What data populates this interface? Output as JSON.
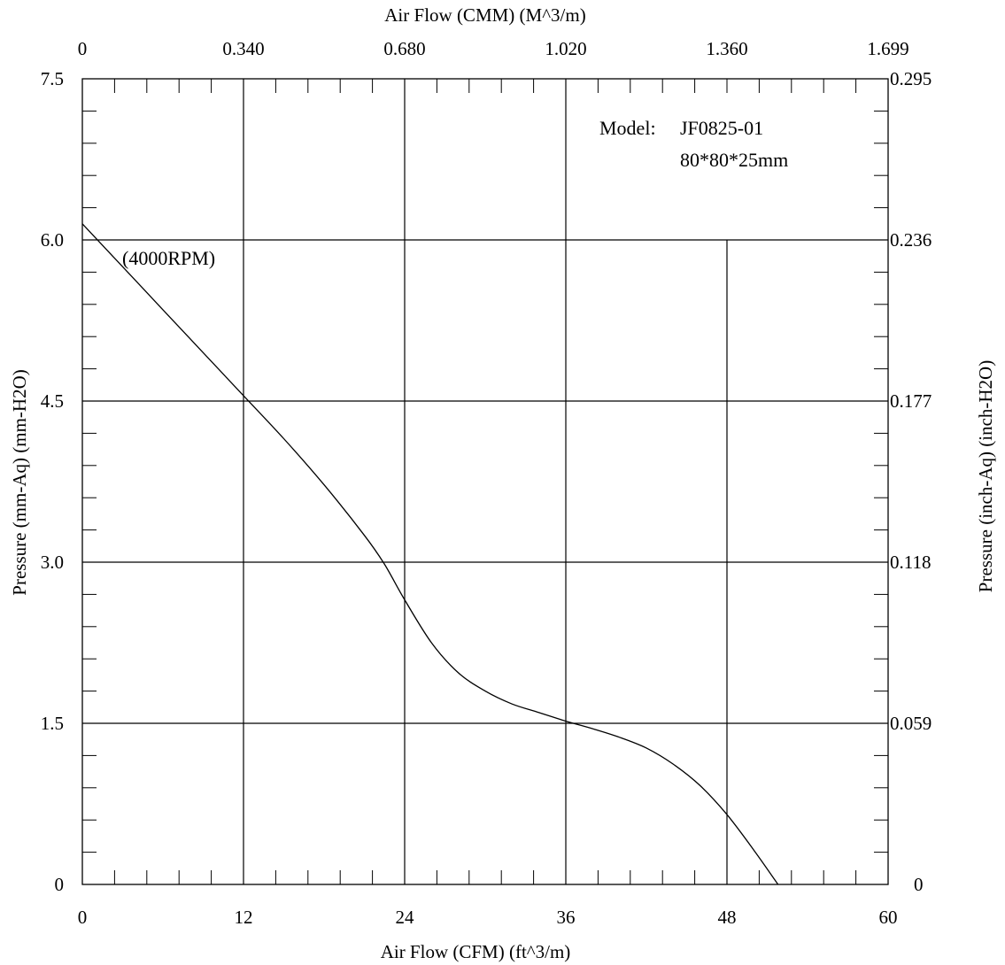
{
  "chart_data": {
    "type": "line",
    "title": "",
    "x_bottom": {
      "label": "Air Flow (CFM) (ft^3/m)",
      "range": [
        0,
        60
      ],
      "ticks": [
        0,
        12,
        24,
        36,
        48,
        60
      ],
      "tick_labels": [
        "0",
        "12",
        "24",
        "36",
        "48",
        "60"
      ]
    },
    "x_top": {
      "label": "Air Flow (CMM) (M^3/m)",
      "tick_labels": [
        "0",
        "0.340",
        "0.680",
        "1.020",
        "1.360",
        "1.699"
      ]
    },
    "y_left": {
      "label": "Pressure (mm-Aq) (mm-H2O)",
      "range": [
        0,
        7.5
      ],
      "ticks": [
        0,
        1.5,
        3.0,
        4.5,
        6.0,
        7.5
      ],
      "tick_labels": [
        "0",
        "1.5",
        "3.0",
        "4.5",
        "6.0",
        "7.5"
      ]
    },
    "y_right": {
      "label": "Pressure (inch-Aq) (inch-H2O)",
      "tick_labels": [
        "0",
        "0.059",
        "0.118",
        "0.177",
        "0.236",
        "0.295"
      ]
    },
    "grid": true,
    "annotations": {
      "model_label": "Model:",
      "model_value": "JF0825-01",
      "size_value": "80*80*25mm",
      "curve_label": "(4000RPM)"
    },
    "series": [
      {
        "x": [
          0,
          3,
          6,
          9,
          12,
          15,
          18,
          21,
          22.5,
          24,
          26,
          28,
          30,
          32,
          34,
          36,
          38,
          40,
          42,
          44,
          46,
          48,
          50,
          51.8
        ],
        "y": [
          6.15,
          5.75,
          5.35,
          4.95,
          4.55,
          4.15,
          3.72,
          3.25,
          2.98,
          2.65,
          2.25,
          1.97,
          1.8,
          1.68,
          1.6,
          1.52,
          1.45,
          1.37,
          1.27,
          1.12,
          0.92,
          0.65,
          0.32,
          0
        ]
      }
    ]
  }
}
